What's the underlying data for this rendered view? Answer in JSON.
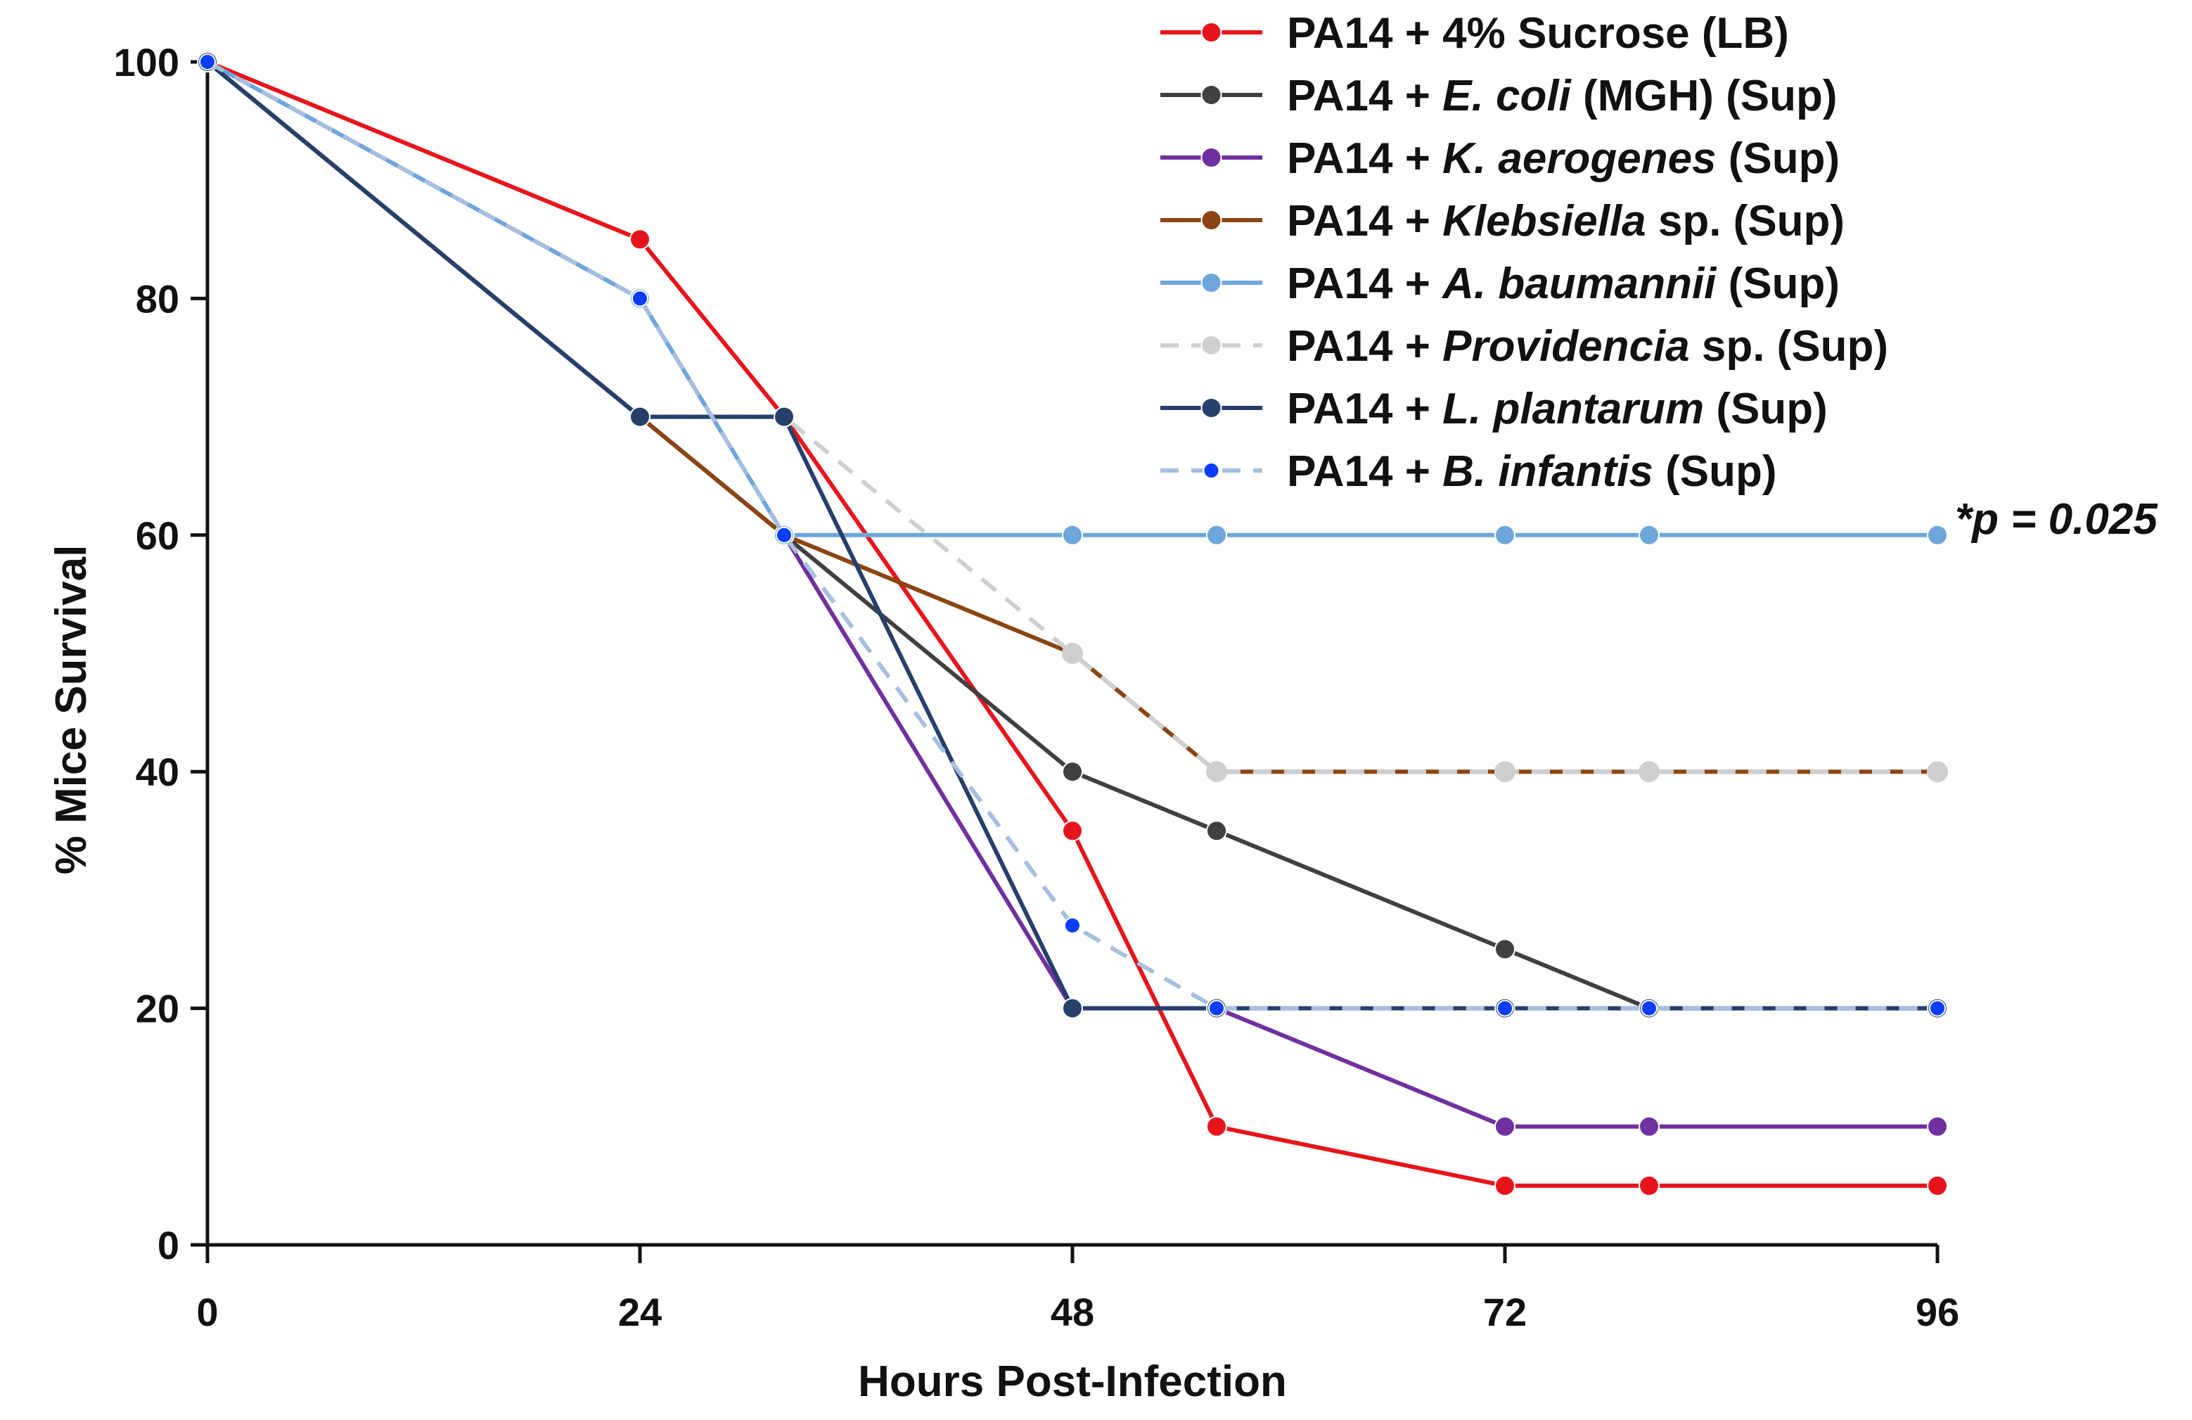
{
  "chart_data": {
    "type": "line",
    "title": "",
    "xlabel": "Hours Post-Infection",
    "ylabel": "% Mice Survival",
    "xlim": [
      0,
      96
    ],
    "ylim": [
      0,
      100
    ],
    "xticks": [
      0,
      24,
      48,
      72,
      96
    ],
    "yticks": [
      0,
      20,
      40,
      60,
      80,
      100
    ],
    "grid": false,
    "legend_position": "top-right",
    "annotation": {
      "text": "*p = 0.025",
      "x": 96,
      "y": 60
    },
    "series": [
      {
        "name": "PA14 + 4% Sucrose (LB)",
        "legend_parts": [
          {
            "t": "PA14 + 4% Sucrose (LB)",
            "i": false
          }
        ],
        "color": "#e8141c",
        "dash": false,
        "marker_color": "#e8141c",
        "points": [
          [
            0,
            100
          ],
          [
            24,
            85
          ],
          [
            32,
            70
          ],
          [
            48,
            35
          ],
          [
            56,
            10
          ],
          [
            72,
            5
          ],
          [
            80,
            5
          ],
          [
            96,
            5
          ]
        ]
      },
      {
        "name": "PA14 + E. coli (MGH) (Sup)",
        "legend_parts": [
          {
            "t": "PA14 + ",
            "i": false
          },
          {
            "t": "E. coli",
            "i": true
          },
          {
            "t": " (MGH) (Sup)",
            "i": false
          }
        ],
        "color": "#404040",
        "dash": false,
        "marker_color": "#404040",
        "points": [
          [
            0,
            100
          ],
          [
            24,
            70
          ],
          [
            32,
            60
          ],
          [
            48,
            40
          ],
          [
            56,
            35
          ],
          [
            72,
            25
          ],
          [
            80,
            20
          ],
          [
            96,
            20
          ]
        ]
      },
      {
        "name": "PA14 + K. aerogenes (Sup)",
        "legend_parts": [
          {
            "t": "PA14 + ",
            "i": false
          },
          {
            "t": "K. aerogenes",
            "i": true
          },
          {
            "t": " (Sup)",
            "i": false
          }
        ],
        "color": "#7030a0",
        "dash": false,
        "marker_color": "#7030a0",
        "points": [
          [
            0,
            100
          ],
          [
            24,
            70
          ],
          [
            32,
            60
          ],
          [
            48,
            20
          ],
          [
            56,
            20
          ],
          [
            72,
            10
          ],
          [
            80,
            10
          ],
          [
            96,
            10
          ]
        ]
      },
      {
        "name": "PA14 + Klebsiella sp. (Sup)",
        "legend_parts": [
          {
            "t": "PA14 + ",
            "i": false
          },
          {
            "t": "Klebsiella",
            "i": true
          },
          {
            "t": " sp. (Sup)",
            "i": false
          }
        ],
        "color": "#8b4513",
        "dash": false,
        "marker_color": "#8b4513",
        "points": [
          [
            0,
            100
          ],
          [
            24,
            70
          ],
          [
            32,
            60
          ],
          [
            48,
            50
          ],
          [
            56,
            40
          ],
          [
            72,
            40
          ],
          [
            80,
            40
          ],
          [
            96,
            40
          ]
        ]
      },
      {
        "name": "PA14 + A. baumannii (Sup)",
        "legend_parts": [
          {
            "t": "PA14 + ",
            "i": false
          },
          {
            "t": "A. baumannii",
            "i": true
          },
          {
            "t": " (Sup)",
            "i": false
          }
        ],
        "color": "#6ea6dc",
        "dash": false,
        "marker_color": "#6ea6dc",
        "points": [
          [
            0,
            100
          ],
          [
            24,
            80
          ],
          [
            32,
            60
          ],
          [
            48,
            60
          ],
          [
            56,
            60
          ],
          [
            72,
            60
          ],
          [
            80,
            60
          ],
          [
            96,
            60
          ]
        ]
      },
      {
        "name": "PA14 + Providencia sp. (Sup)",
        "legend_parts": [
          {
            "t": "PA14 + ",
            "i": false
          },
          {
            "t": "Providencia",
            "i": true
          },
          {
            "t": " sp. (Sup)",
            "i": false
          }
        ],
        "color": "#cfcfcf",
        "dash": true,
        "marker_color": "#cfcfcf",
        "points": [
          [
            0,
            100
          ],
          [
            24,
            70
          ],
          [
            32,
            70
          ],
          [
            48,
            50
          ],
          [
            56,
            40
          ],
          [
            72,
            40
          ],
          [
            80,
            40
          ],
          [
            96,
            40
          ]
        ]
      },
      {
        "name": "PA14 + L. plantarum (Sup)",
        "legend_parts": [
          {
            "t": "PA14 + ",
            "i": false
          },
          {
            "t": "L. plantarum",
            "i": true
          },
          {
            "t": " (Sup)",
            "i": false
          }
        ],
        "color": "#26406c",
        "dash": false,
        "marker_color": "#26406c",
        "points": [
          [
            0,
            100
          ],
          [
            24,
            70
          ],
          [
            32,
            70
          ],
          [
            48,
            20
          ],
          [
            56,
            20
          ],
          [
            72,
            20
          ],
          [
            80,
            20
          ],
          [
            96,
            20
          ]
        ]
      },
      {
        "name": "PA14 + B. infantis (Sup)",
        "legend_parts": [
          {
            "t": "PA14 + ",
            "i": false
          },
          {
            "t": "B. infantis",
            "i": true
          },
          {
            "t": " (Sup)",
            "i": false
          }
        ],
        "color": "#a6bfe0",
        "dash": true,
        "marker_color": "#0a3dff",
        "points": [
          [
            0,
            100
          ],
          [
            24,
            80
          ],
          [
            32,
            60
          ],
          [
            48,
            27
          ],
          [
            56,
            20
          ],
          [
            72,
            20
          ],
          [
            80,
            20
          ],
          [
            96,
            20
          ]
        ]
      }
    ]
  }
}
